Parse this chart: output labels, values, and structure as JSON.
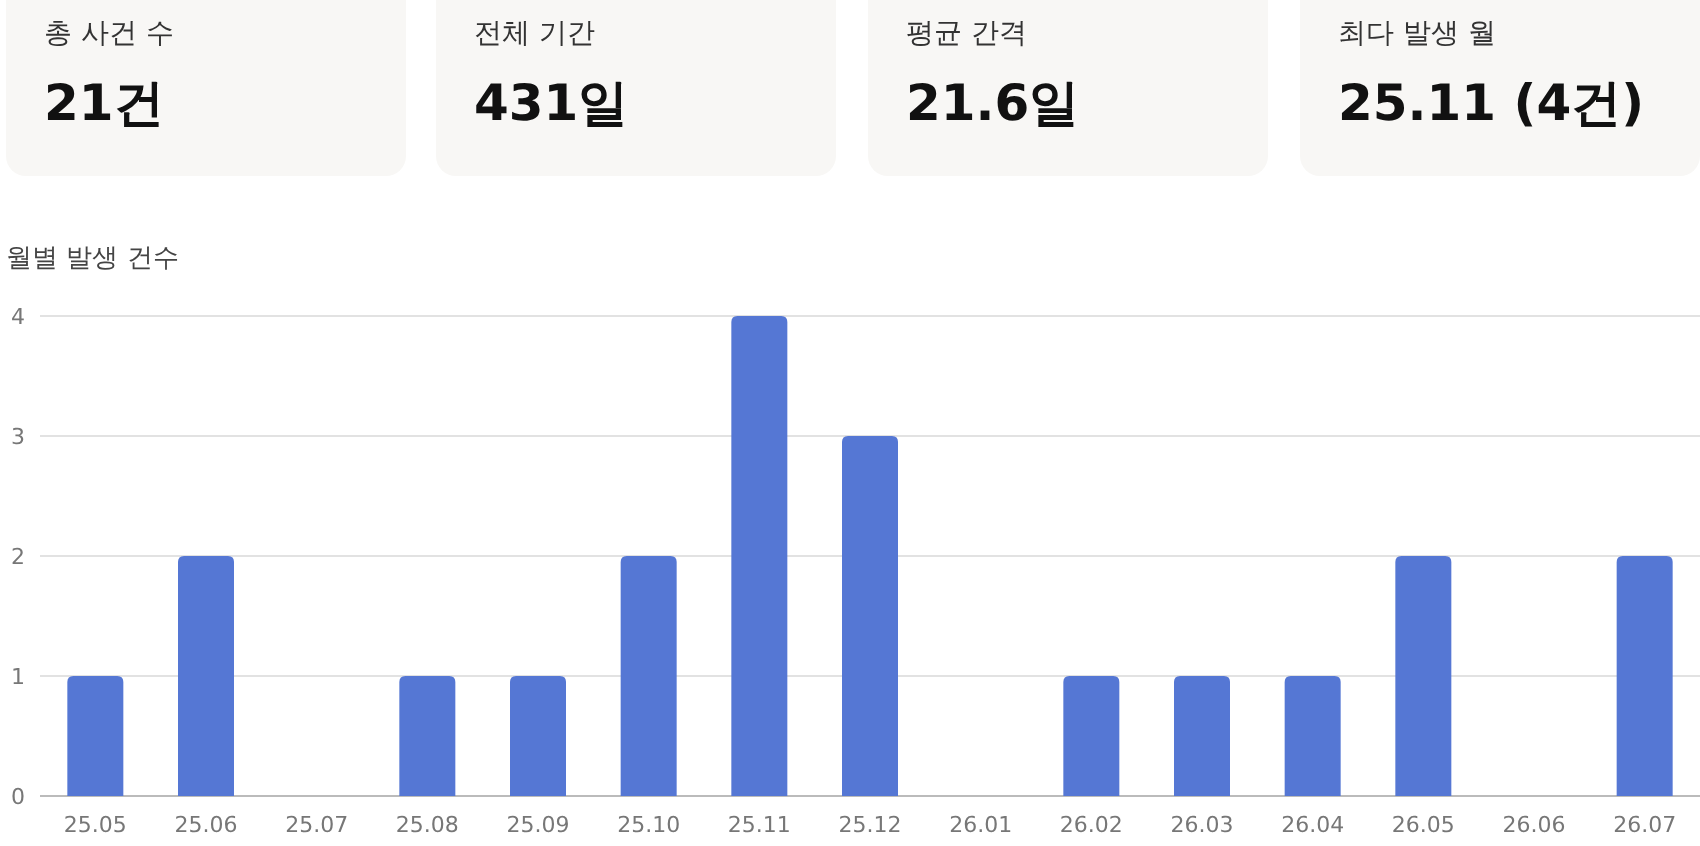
{
  "chart_data": [
    {
      "type": "other",
      "annotations": [
        "총 사건 수",
        "21건",
        "전체 기간",
        "431일",
        "평균 간격",
        "21.6일",
        "최다 발생 월",
        "25.11 (4건)"
      ]
    },
    {
      "type": "bar",
      "title": "월별 발생 건수",
      "categories": [
        "25.05",
        "25.06",
        "25.07",
        "25.08",
        "25.09",
        "25.10",
        "25.11",
        "25.12",
        "26.01",
        "26.02",
        "26.03",
        "26.04",
        "26.05",
        "26.06",
        "26.07"
      ],
      "values": [
        1,
        2,
        0,
        1,
        1,
        2,
        4,
        3,
        0,
        1,
        1,
        1,
        2,
        0,
        2
      ],
      "color": "#5577d4",
      "ylim": [
        0,
        4
      ],
      "yticks": [
        0,
        1,
        2,
        3,
        4
      ],
      "grid": "y"
    }
  ]
}
